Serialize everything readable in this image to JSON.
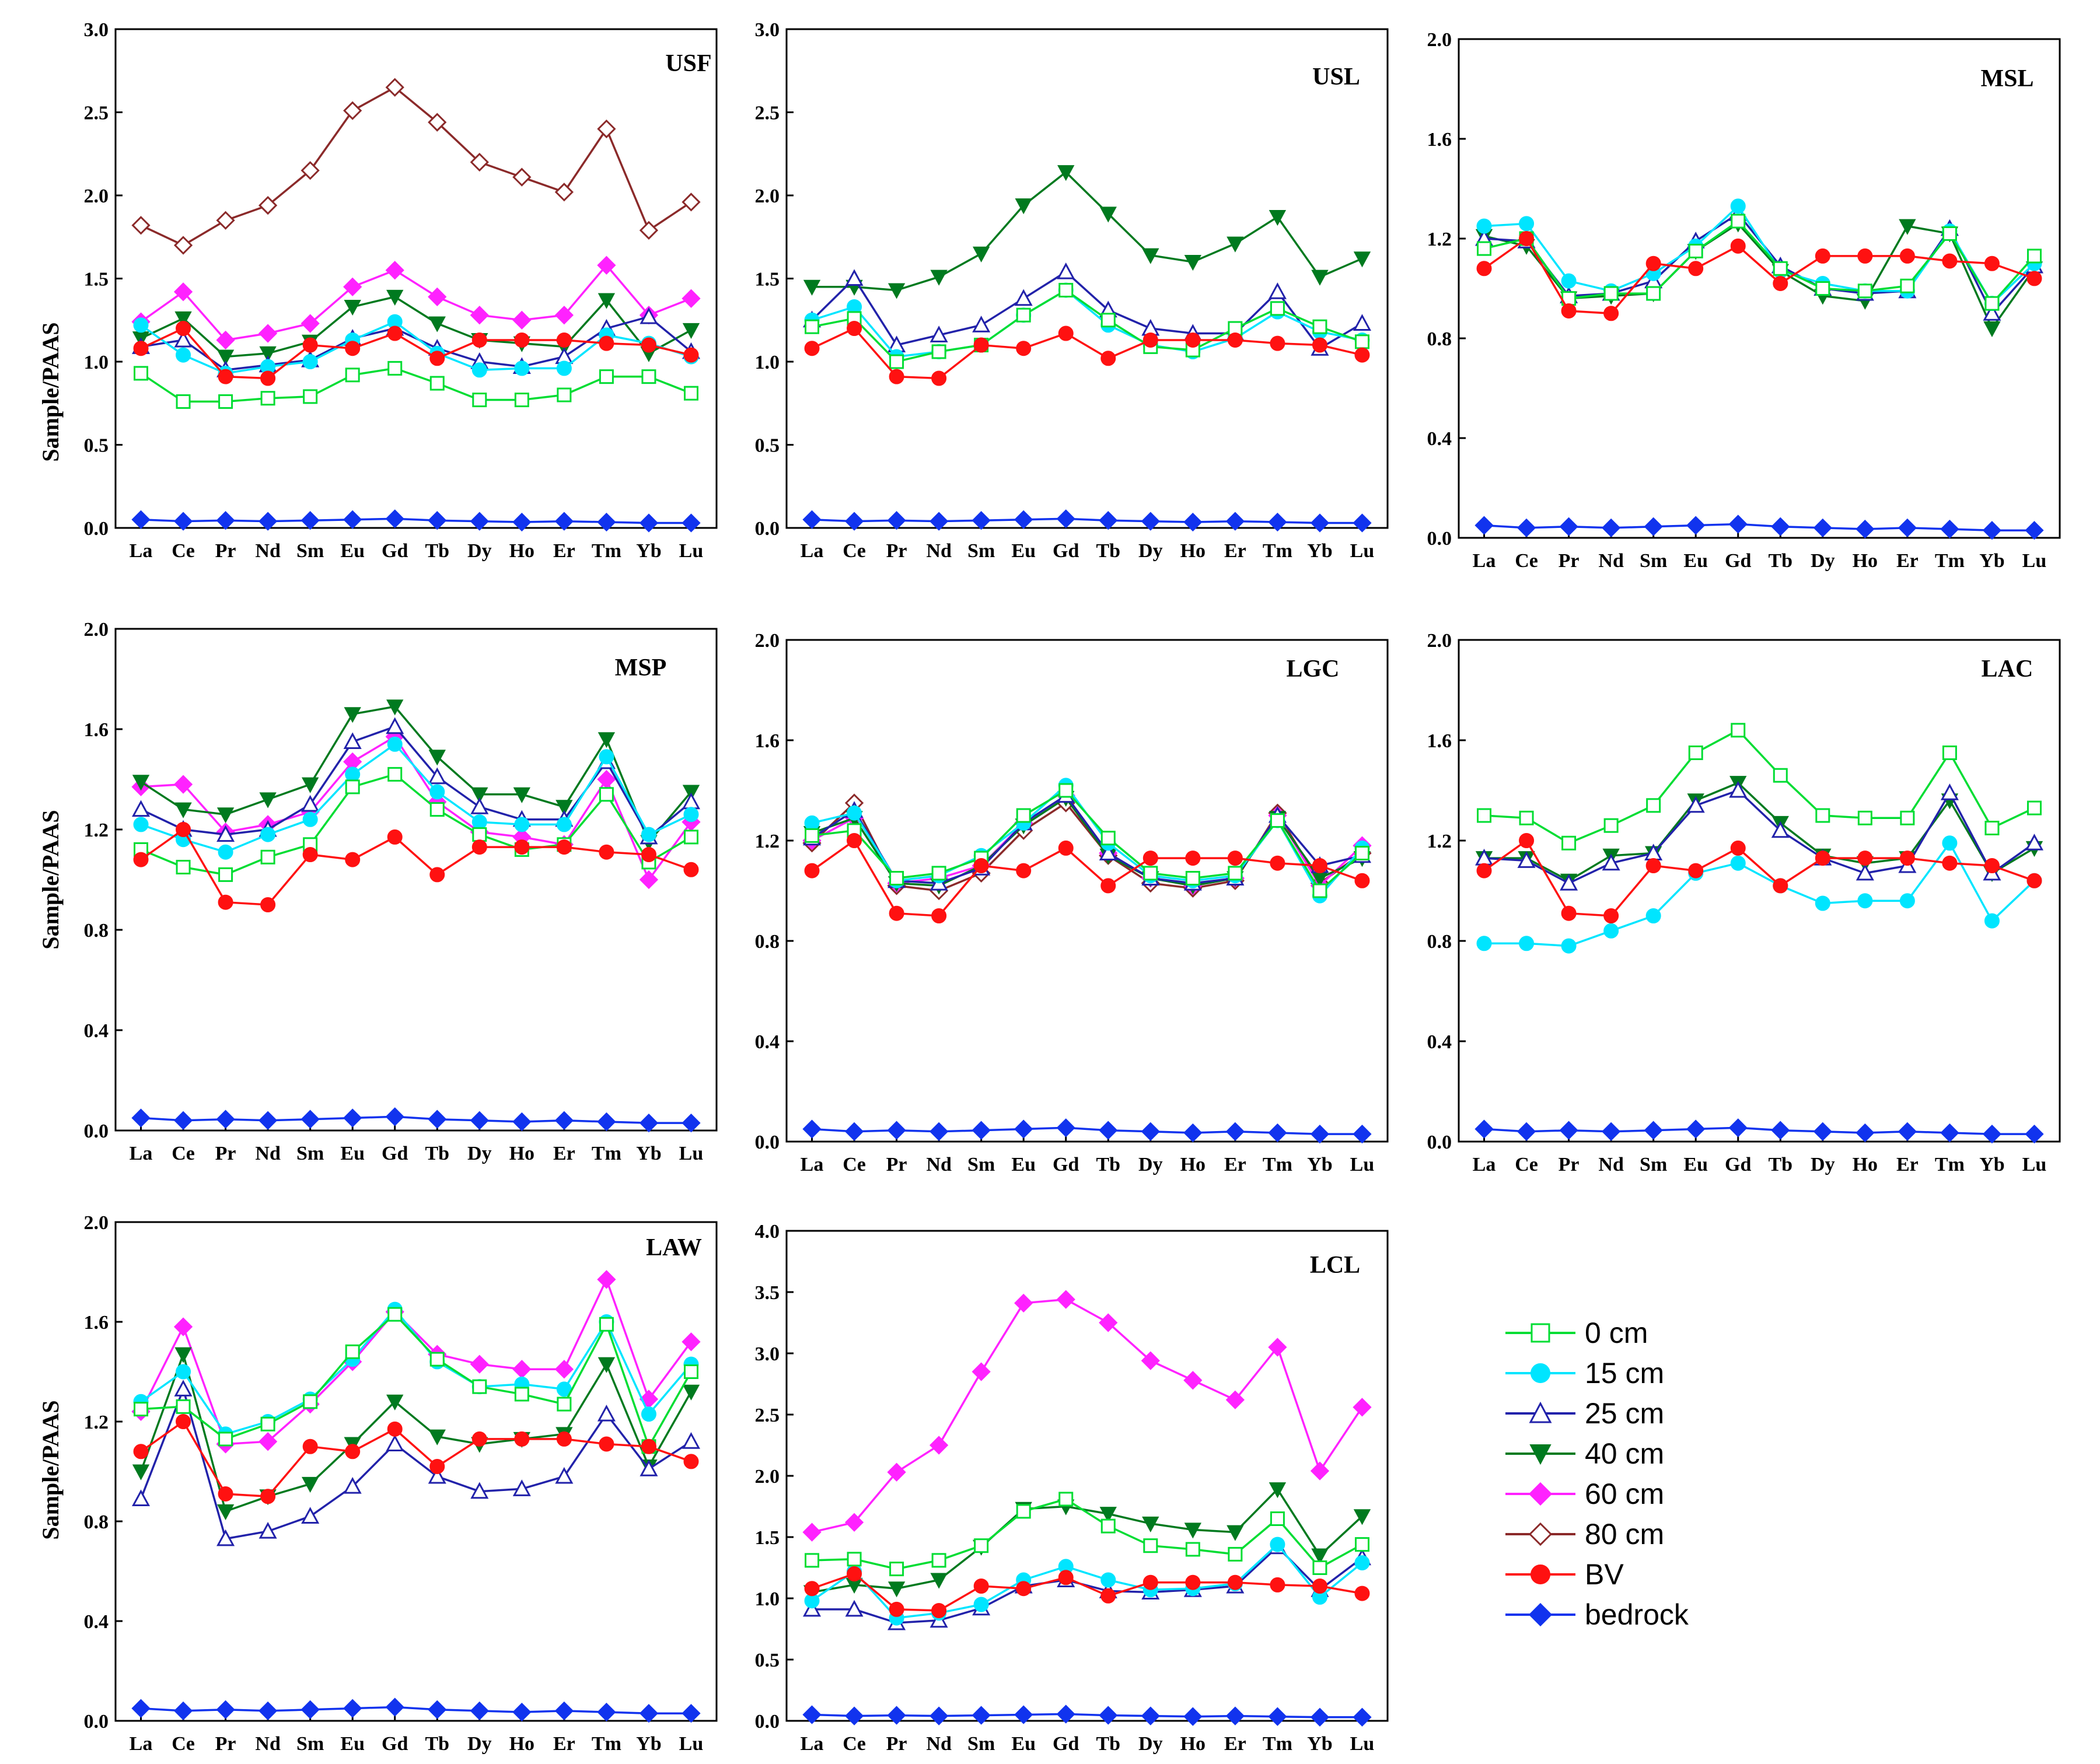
{
  "chart_data": {
    "type": "line",
    "ylabel": "Sample/PAAS",
    "categories": [
      "La",
      "Ce",
      "Pr",
      "Nd",
      "Sm",
      "Eu",
      "Gd",
      "Tb",
      "Dy",
      "Ho",
      "Er",
      "Tm",
      "Yb",
      "Lu"
    ],
    "series_styles": [
      {
        "key": "0cm",
        "name": "0 cm",
        "color": "#00dd33",
        "marker": "square-open"
      },
      {
        "key": "15cm",
        "name": "15 cm",
        "color": "#00e5ff",
        "marker": "circle"
      },
      {
        "key": "25cm",
        "name": "25 cm",
        "color": "#2222aa",
        "marker": "triangle-open"
      },
      {
        "key": "40cm",
        "name": "40 cm",
        "color": "#007a1f",
        "marker": "triangle-down"
      },
      {
        "key": "60cm",
        "name": "60 cm",
        "color": "#ff22ff",
        "marker": "diamond"
      },
      {
        "key": "80cm",
        "name": "80 cm",
        "color": "#8b2a2a",
        "marker": "diamond-open"
      },
      {
        "key": "BV",
        "name": "BV",
        "color": "#ff1111",
        "marker": "circle"
      },
      {
        "key": "bedrock",
        "name": "bedrock",
        "color": "#1133ee",
        "marker": "diamond"
      }
    ],
    "panels": [
      {
        "title": "USF",
        "ylim": [
          0,
          3.0
        ],
        "yticks": [
          "0.0",
          "0.5",
          "1.0",
          "1.5",
          "2.0",
          "2.5",
          "3.0"
        ],
        "show_ylabel": true,
        "series": {
          "80cm": [
            1.82,
            1.7,
            1.85,
            1.94,
            2.15,
            2.51,
            2.65,
            2.44,
            2.2,
            2.11,
            2.02,
            2.4,
            1.79,
            1.96
          ],
          "60cm": [
            1.24,
            1.42,
            1.13,
            1.17,
            1.23,
            1.45,
            1.55,
            1.39,
            1.28,
            1.25,
            1.28,
            1.58,
            1.28,
            1.38
          ],
          "40cm": [
            1.14,
            1.26,
            1.03,
            1.05,
            1.12,
            1.33,
            1.39,
            1.23,
            1.13,
            1.11,
            1.09,
            1.37,
            1.05,
            1.19
          ],
          "25cm": [
            1.09,
            1.13,
            0.95,
            0.98,
            1.01,
            1.14,
            1.2,
            1.08,
            1.0,
            0.97,
            1.03,
            1.2,
            1.27,
            1.06
          ],
          "15cm": [
            1.22,
            1.04,
            0.93,
            0.97,
            1.0,
            1.13,
            1.24,
            1.05,
            0.95,
            0.96,
            0.96,
            1.16,
            1.11,
            1.03
          ],
          "BV": [
            1.08,
            1.2,
            0.91,
            0.9,
            1.1,
            1.08,
            1.17,
            1.02,
            1.13,
            1.13,
            1.13,
            1.11,
            1.1,
            1.04
          ],
          "0cm": [
            0.93,
            0.76,
            0.76,
            0.78,
            0.79,
            0.92,
            0.96,
            0.87,
            0.77,
            0.77,
            0.8,
            0.91,
            0.91,
            0.81
          ],
          "bedrock": [
            0.05,
            0.04,
            0.045,
            0.04,
            0.045,
            0.05,
            0.055,
            0.045,
            0.04,
            0.035,
            0.04,
            0.035,
            0.03,
            0.03
          ]
        }
      },
      {
        "title": "USL",
        "ylim": [
          0,
          3.0
        ],
        "yticks": [
          "0.0",
          "0.5",
          "1.0",
          "1.5",
          "2.0",
          "2.5",
          "3.0"
        ],
        "show_ylabel": false,
        "series": {
          "40cm": [
            1.45,
            1.45,
            1.43,
            1.51,
            1.65,
            1.94,
            2.14,
            1.89,
            1.64,
            1.6,
            1.71,
            1.87,
            1.51,
            1.62
          ],
          "25cm": [
            1.25,
            1.5,
            1.1,
            1.16,
            1.22,
            1.38,
            1.54,
            1.31,
            1.2,
            1.17,
            1.17,
            1.42,
            1.08,
            1.23
          ],
          "15cm": [
            1.25,
            1.33,
            1.03,
            1.06,
            1.1,
            1.28,
            1.43,
            1.22,
            1.1,
            1.06,
            1.14,
            1.3,
            1.18,
            1.13
          ],
          "0cm": [
            1.21,
            1.26,
            1.0,
            1.06,
            1.1,
            1.28,
            1.43,
            1.25,
            1.09,
            1.07,
            1.2,
            1.32,
            1.21,
            1.12
          ],
          "BV": [
            1.08,
            1.2,
            0.91,
            0.9,
            1.1,
            1.08,
            1.17,
            1.02,
            1.13,
            1.13,
            1.13,
            1.11,
            1.1,
            1.04
          ],
          "bedrock": [
            0.05,
            0.04,
            0.045,
            0.04,
            0.045,
            0.05,
            0.055,
            0.045,
            0.04,
            0.035,
            0.04,
            0.035,
            0.03,
            0.03
          ]
        }
      },
      {
        "title": "MSL",
        "ylim": [
          0,
          2.0
        ],
        "yticks": [
          "0.0",
          "0.4",
          "0.8",
          "1.2",
          "1.6",
          "2.0"
        ],
        "show_ylabel": false,
        "series": {
          "0cm": [
            1.16,
            1.2,
            0.96,
            0.98,
            0.98,
            1.15,
            1.27,
            1.08,
            1.0,
            0.99,
            1.01,
            1.22,
            0.94,
            1.13
          ],
          "15cm": [
            1.25,
            1.26,
            1.03,
            0.99,
            1.06,
            1.17,
            1.33,
            1.07,
            1.02,
            0.99,
            0.99,
            1.23,
            0.94,
            1.1
          ],
          "25cm": [
            1.2,
            1.19,
            0.97,
            0.98,
            1.03,
            1.19,
            1.3,
            1.09,
            1.0,
            0.98,
            0.99,
            1.24,
            0.9,
            1.09
          ],
          "40cm": [
            1.21,
            1.17,
            0.96,
            0.97,
            0.98,
            1.15,
            1.26,
            1.07,
            0.97,
            0.95,
            1.25,
            1.22,
            0.84,
            1.08
          ],
          "BV": [
            1.08,
            1.2,
            0.91,
            0.9,
            1.1,
            1.08,
            1.17,
            1.02,
            1.13,
            1.13,
            1.13,
            1.11,
            1.1,
            1.04
          ],
          "bedrock": [
            0.05,
            0.04,
            0.045,
            0.04,
            0.045,
            0.05,
            0.055,
            0.045,
            0.04,
            0.035,
            0.04,
            0.035,
            0.03,
            0.03
          ]
        }
      },
      {
        "title": "MSP",
        "ylim": [
          0,
          2.0
        ],
        "yticks": [
          "0.0",
          "0.4",
          "0.8",
          "1.2",
          "1.6",
          "2.0"
        ],
        "show_ylabel": true,
        "series": {
          "40cm": [
            1.39,
            1.28,
            1.26,
            1.32,
            1.38,
            1.66,
            1.69,
            1.49,
            1.34,
            1.34,
            1.29,
            1.56,
            1.15,
            1.35
          ],
          "25cm": [
            1.28,
            1.2,
            1.18,
            1.2,
            1.3,
            1.55,
            1.61,
            1.41,
            1.29,
            1.24,
            1.24,
            1.47,
            1.17,
            1.31
          ],
          "60cm": [
            1.37,
            1.38,
            1.19,
            1.22,
            1.27,
            1.47,
            1.57,
            1.31,
            1.19,
            1.17,
            1.14,
            1.4,
            1.0,
            1.23
          ],
          "15cm": [
            1.22,
            1.16,
            1.11,
            1.18,
            1.24,
            1.42,
            1.54,
            1.35,
            1.23,
            1.22,
            1.22,
            1.49,
            1.18,
            1.26
          ],
          "0cm": [
            1.12,
            1.05,
            1.02,
            1.09,
            1.14,
            1.37,
            1.42,
            1.28,
            1.18,
            1.12,
            1.14,
            1.34,
            1.07,
            1.17
          ],
          "BV": [
            1.08,
            1.2,
            0.91,
            0.9,
            1.1,
            1.08,
            1.17,
            1.02,
            1.13,
            1.13,
            1.13,
            1.11,
            1.1,
            1.04
          ],
          "bedrock": [
            0.05,
            0.04,
            0.045,
            0.04,
            0.045,
            0.05,
            0.055,
            0.045,
            0.04,
            0.035,
            0.04,
            0.035,
            0.03,
            0.03
          ]
        }
      },
      {
        "title": "LGC",
        "ylim": [
          0,
          2.0
        ],
        "yticks": [
          "0.0",
          "0.4",
          "0.8",
          "1.2",
          "1.6",
          "2.0"
        ],
        "show_ylabel": false,
        "series": {
          "0cm": [
            1.22,
            1.24,
            1.05,
            1.07,
            1.13,
            1.3,
            1.4,
            1.21,
            1.07,
            1.05,
            1.07,
            1.28,
            1.0,
            1.15
          ],
          "15cm": [
            1.27,
            1.31,
            1.04,
            1.06,
            1.14,
            1.27,
            1.42,
            1.19,
            1.06,
            1.04,
            1.06,
            1.28,
            0.98,
            1.17
          ],
          "25cm": [
            1.21,
            1.32,
            1.04,
            1.03,
            1.09,
            1.27,
            1.38,
            1.15,
            1.05,
            1.03,
            1.05,
            1.3,
            1.1,
            1.14
          ],
          "40cm": [
            1.23,
            1.29,
            1.03,
            1.02,
            1.1,
            1.26,
            1.37,
            1.14,
            1.05,
            1.02,
            1.05,
            1.29,
            1.05,
            1.13
          ],
          "60cm": [
            1.2,
            1.29,
            1.03,
            1.05,
            1.1,
            1.27,
            1.38,
            1.15,
            1.05,
            1.02,
            1.05,
            1.3,
            1.02,
            1.18
          ],
          "80cm": [
            1.19,
            1.35,
            1.02,
            1.0,
            1.07,
            1.24,
            1.35,
            1.14,
            1.03,
            1.01,
            1.04,
            1.31,
            1.03,
            1.15
          ],
          "BV": [
            1.08,
            1.2,
            0.91,
            0.9,
            1.1,
            1.08,
            1.17,
            1.02,
            1.13,
            1.13,
            1.13,
            1.11,
            1.1,
            1.04
          ],
          "bedrock": [
            0.05,
            0.04,
            0.045,
            0.04,
            0.045,
            0.05,
            0.055,
            0.045,
            0.04,
            0.035,
            0.04,
            0.035,
            0.03,
            0.03
          ]
        }
      },
      {
        "title": "LAC",
        "ylim": [
          0,
          2.0
        ],
        "yticks": [
          "0.0",
          "0.4",
          "0.8",
          "1.2",
          "1.6",
          "2.0"
        ],
        "show_ylabel": false,
        "series": {
          "0cm": [
            1.3,
            1.29,
            1.19,
            1.26,
            1.34,
            1.55,
            1.64,
            1.46,
            1.3,
            1.29,
            1.29,
            1.55,
            1.25,
            1.33
          ],
          "40cm": [
            1.13,
            1.13,
            1.04,
            1.14,
            1.15,
            1.36,
            1.43,
            1.27,
            1.14,
            1.11,
            1.13,
            1.36,
            1.07,
            1.17
          ],
          "25cm": [
            1.13,
            1.12,
            1.03,
            1.11,
            1.15,
            1.34,
            1.4,
            1.24,
            1.13,
            1.07,
            1.1,
            1.39,
            1.07,
            1.19
          ],
          "15cm": [
            0.79,
            0.79,
            0.78,
            0.84,
            0.9,
            1.07,
            1.11,
            1.02,
            0.95,
            0.96,
            0.96,
            1.19,
            0.88,
            1.04
          ],
          "BV": [
            1.08,
            1.2,
            0.91,
            0.9,
            1.1,
            1.08,
            1.17,
            1.02,
            1.13,
            1.13,
            1.13,
            1.11,
            1.1,
            1.04
          ],
          "bedrock": [
            0.05,
            0.04,
            0.045,
            0.04,
            0.045,
            0.05,
            0.055,
            0.045,
            0.04,
            0.035,
            0.04,
            0.035,
            0.03,
            0.03
          ]
        }
      },
      {
        "title": "LAW",
        "ylim": [
          0,
          2.0
        ],
        "yticks": [
          "0.0",
          "0.4",
          "0.8",
          "1.2",
          "1.6",
          "2.0"
        ],
        "show_ylabel": true,
        "series": {
          "60cm": [
            1.24,
            1.58,
            1.11,
            1.12,
            1.27,
            1.44,
            1.64,
            1.47,
            1.43,
            1.41,
            1.41,
            1.77,
            1.29,
            1.52
          ],
          "15cm": [
            1.28,
            1.4,
            1.15,
            1.2,
            1.29,
            1.45,
            1.65,
            1.44,
            1.34,
            1.35,
            1.33,
            1.6,
            1.23,
            1.43
          ],
          "0cm": [
            1.25,
            1.26,
            1.13,
            1.19,
            1.28,
            1.48,
            1.63,
            1.45,
            1.34,
            1.31,
            1.27,
            1.59,
            1.1,
            1.4
          ],
          "40cm": [
            1.0,
            1.47,
            0.84,
            0.9,
            0.95,
            1.11,
            1.28,
            1.14,
            1.11,
            1.13,
            1.15,
            1.43,
            1.02,
            1.32
          ],
          "25cm": [
            0.89,
            1.33,
            0.73,
            0.76,
            0.82,
            0.94,
            1.11,
            0.98,
            0.92,
            0.93,
            0.98,
            1.23,
            1.01,
            1.12
          ],
          "BV": [
            1.08,
            1.2,
            0.91,
            0.9,
            1.1,
            1.08,
            1.17,
            1.02,
            1.13,
            1.13,
            1.13,
            1.11,
            1.1,
            1.04
          ],
          "bedrock": [
            0.05,
            0.04,
            0.045,
            0.04,
            0.045,
            0.05,
            0.055,
            0.045,
            0.04,
            0.035,
            0.04,
            0.035,
            0.03,
            0.03
          ]
        }
      },
      {
        "title": "LCL",
        "ylim": [
          0,
          4.0
        ],
        "yticks": [
          "0.0",
          "0.5",
          "1.0",
          "1.5",
          "2.0",
          "2.5",
          "3.0",
          "3.5",
          "4.0"
        ],
        "show_ylabel": false,
        "series": {
          "60cm": [
            1.54,
            1.62,
            2.03,
            2.25,
            2.85,
            3.41,
            3.44,
            3.25,
            2.94,
            2.78,
            2.62,
            3.05,
            2.04,
            2.56
          ],
          "0cm": [
            1.31,
            1.32,
            1.24,
            1.31,
            1.43,
            1.71,
            1.81,
            1.59,
            1.43,
            1.4,
            1.36,
            1.65,
            1.25,
            1.44
          ],
          "40cm": [
            1.05,
            1.11,
            1.08,
            1.15,
            1.42,
            1.73,
            1.75,
            1.69,
            1.61,
            1.56,
            1.54,
            1.89,
            1.35,
            1.67
          ],
          "15cm": [
            0.98,
            1.22,
            0.84,
            0.88,
            0.95,
            1.15,
            1.26,
            1.15,
            1.07,
            1.08,
            1.12,
            1.44,
            1.01,
            1.29
          ],
          "25cm": [
            0.91,
            0.91,
            0.8,
            0.82,
            0.92,
            1.1,
            1.15,
            1.06,
            1.05,
            1.07,
            1.1,
            1.42,
            1.07,
            1.33
          ],
          "BV": [
            1.08,
            1.2,
            0.91,
            0.9,
            1.1,
            1.08,
            1.17,
            1.02,
            1.13,
            1.13,
            1.13,
            1.11,
            1.1,
            1.04
          ],
          "bedrock": [
            0.05,
            0.04,
            0.045,
            0.04,
            0.045,
            0.05,
            0.055,
            0.045,
            0.04,
            0.035,
            0.04,
            0.035,
            0.03,
            0.03
          ]
        }
      }
    ]
  }
}
